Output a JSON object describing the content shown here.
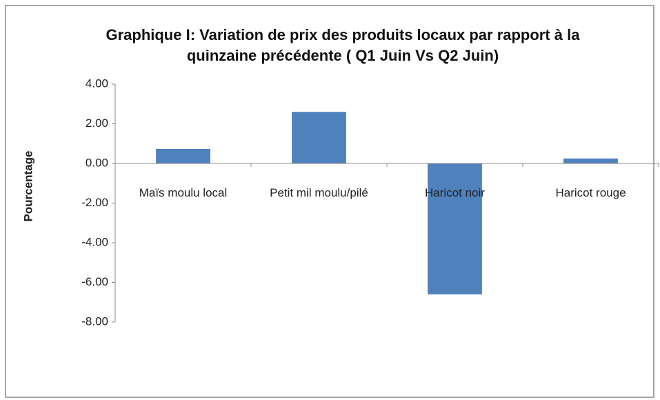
{
  "chart_data": {
    "type": "bar",
    "title": "Graphique I: Variation de prix des produits locaux par rapport à la quinzaine précédente ( Q1 Juin Vs Q2 Juin)",
    "y_label": "Pourcentage",
    "categories": [
      "Maïs moulu local",
      "Petit mil moulu/pilé",
      "Haricot noir",
      "Haricot rouge"
    ],
    "values": [
      0.73,
      2.6,
      -6.6,
      0.25
    ],
    "color": "#4f81bd",
    "ylim": [
      -8,
      4
    ],
    "yticks": [
      {
        "value": -8,
        "label": "-8.00"
      },
      {
        "value": -6,
        "label": "-6.00"
      },
      {
        "value": -4,
        "label": "-4.00"
      },
      {
        "value": -2,
        "label": "-2.00"
      },
      {
        "value": 0,
        "label": "0.00"
      },
      {
        "value": 2,
        "label": "2.00"
      },
      {
        "value": 4,
        "label": "4.00"
      }
    ],
    "grid": false
  }
}
